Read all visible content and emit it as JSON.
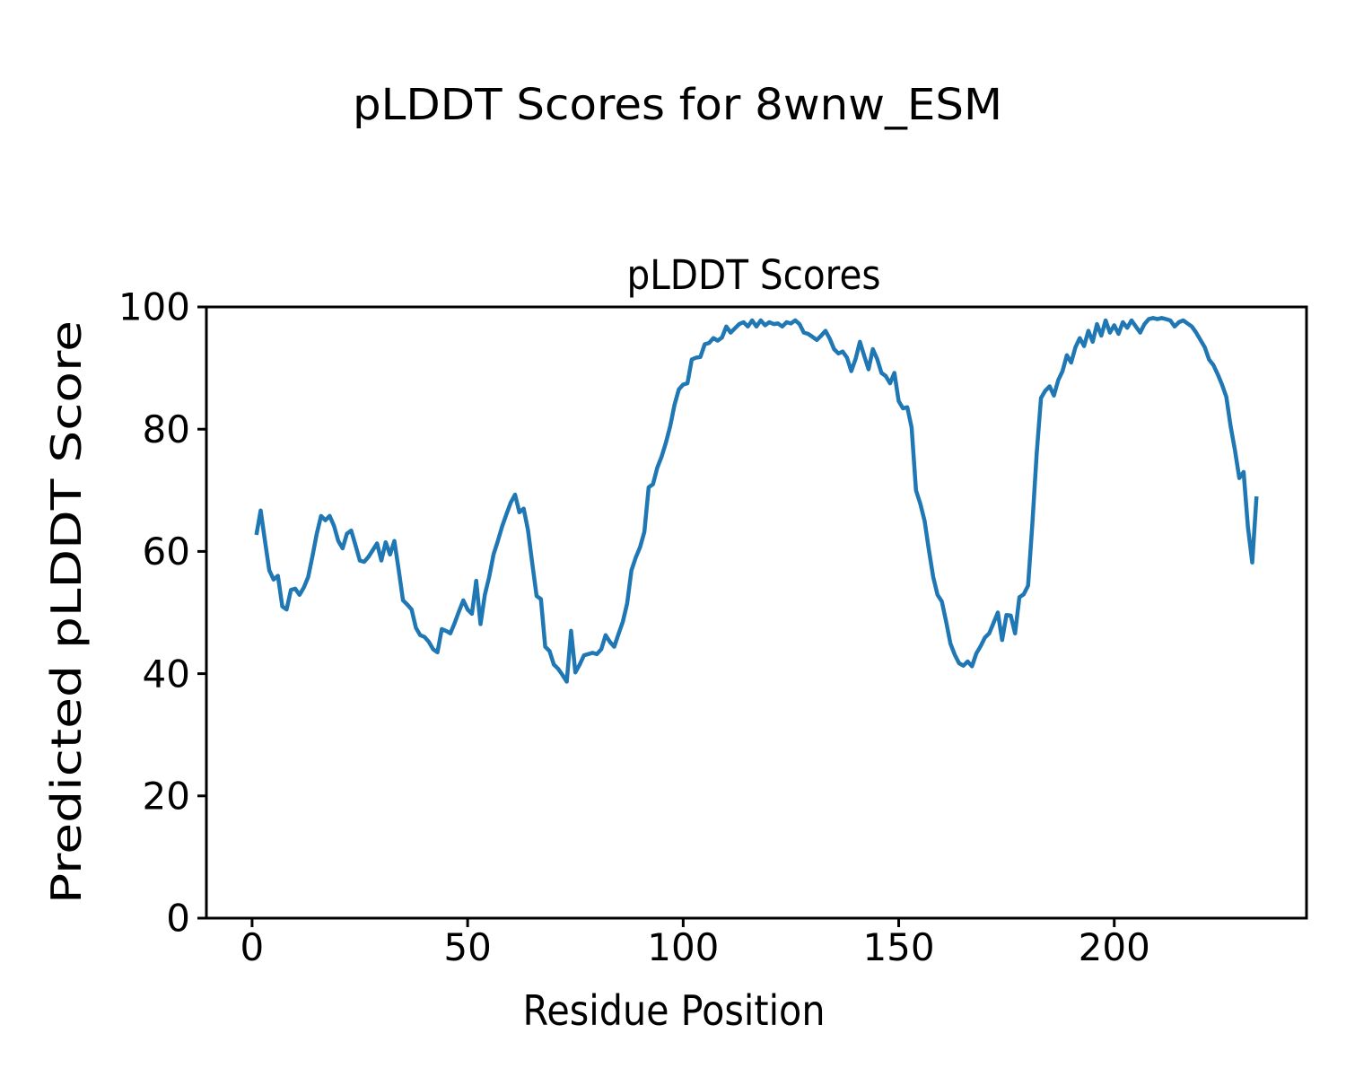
{
  "figure": {
    "suptitle": "pLDDT Scores for 8wnw_ESM",
    "background_color": "#ffffff",
    "text_color": "#000000"
  },
  "chart_data": {
    "type": "line",
    "title": "pLDDT Scores",
    "xlabel": "Residue Position",
    "ylabel": "Predicted pLDDT Score",
    "line_color": "#1f77b4",
    "line_width": 4.5,
    "grid": false,
    "legend": null,
    "xlim": [
      -10.6,
      244.6
    ],
    "ylim": [
      0,
      100
    ],
    "x_ticks": [
      0,
      50,
      100,
      150,
      200
    ],
    "y_ticks": [
      0,
      20,
      40,
      60,
      80,
      100
    ],
    "x_start": 1,
    "x_step": 1,
    "n_points": 233,
    "y": [
      62.7,
      66.7,
      61.7,
      56.9,
      55.4,
      56.0,
      51.0,
      50.5,
      53.7,
      53.9,
      52.9,
      54.1,
      55.8,
      59.2,
      62.9,
      65.8,
      65.1,
      65.8,
      64.2,
      61.7,
      60.5,
      62.9,
      63.4,
      61.0,
      58.5,
      58.3,
      59.1,
      60.2,
      61.3,
      58.5,
      61.5,
      59.5,
      61.7,
      57.0,
      52.0,
      51.3,
      50.5,
      47.5,
      46.3,
      46.0,
      45.2,
      44.0,
      43.5,
      47.3,
      47.0,
      46.6,
      48.3,
      50.2,
      52.0,
      50.5,
      49.8,
      55.2,
      48.1,
      52.9,
      55.8,
      59.5,
      61.7,
      64.1,
      66.1,
      68.0,
      69.3,
      66.4,
      67.0,
      63.5,
      58.0,
      52.7,
      52.2,
      44.4,
      43.7,
      41.5,
      40.8,
      39.8,
      38.7,
      47.0,
      40.2,
      41.5,
      43.0,
      43.2,
      43.4,
      43.2,
      44.0,
      46.3,
      45.2,
      44.4,
      46.5,
      48.5,
      51.5,
      56.9,
      59.0,
      60.7,
      63.2,
      70.5,
      71.0,
      73.7,
      75.5,
      77.8,
      80.5,
      84.0,
      86.5,
      87.3,
      87.5,
      91.4,
      91.7,
      91.8,
      93.9,
      94.1,
      94.9,
      94.5,
      95.0,
      96.8,
      95.8,
      96.5,
      97.2,
      97.5,
      96.8,
      97.8,
      96.8,
      97.8,
      97.0,
      97.5,
      97.2,
      97.3,
      96.8,
      97.5,
      97.3,
      97.8,
      97.2,
      95.8,
      95.6,
      95.1,
      94.6,
      95.3,
      96.1,
      94.8,
      93.1,
      92.4,
      92.7,
      91.7,
      89.5,
      91.5,
      94.3,
      92.0,
      89.8,
      93.1,
      91.5,
      89.2,
      88.7,
      87.5,
      89.2,
      84.6,
      83.4,
      83.6,
      80.3,
      70.0,
      67.8,
      65.0,
      60.2,
      55.8,
      52.9,
      51.8,
      48.5,
      44.9,
      43.1,
      41.7,
      41.3,
      42.0,
      41.2,
      43.3,
      44.5,
      45.9,
      46.6,
      48.3,
      50.0,
      45.5,
      49.6,
      49.5,
      46.6,
      52.5,
      53.0,
      54.4,
      64.6,
      76.0,
      85.1,
      86.3,
      87.0,
      85.5,
      88.0,
      89.5,
      92.1,
      90.9,
      93.4,
      94.9,
      93.6,
      96.1,
      94.3,
      97.2,
      95.3,
      97.8,
      95.8,
      97.0,
      95.6,
      97.5,
      96.6,
      97.8,
      96.8,
      95.8,
      97.2,
      98.0,
      98.2,
      98.0,
      98.2,
      98.0,
      97.8,
      96.8,
      97.5,
      97.8,
      97.3,
      96.8,
      95.8,
      94.6,
      93.4,
      91.4,
      90.5,
      89.0,
      87.3,
      85.3,
      80.5,
      76.5,
      72.0,
      73.0,
      64.0,
      58.2,
      69.0
    ]
  }
}
